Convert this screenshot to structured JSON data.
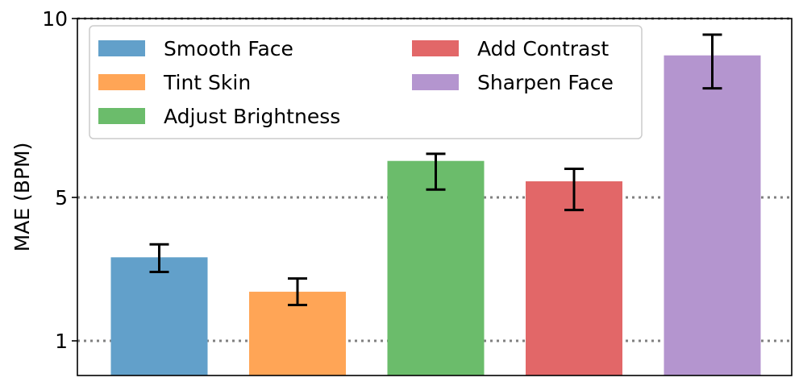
{
  "chart_data": {
    "type": "bar",
    "title": "",
    "xlabel": "",
    "ylabel": "MAE (BPM)",
    "categories": [
      "Smooth Face",
      "Tint Skin",
      "Adjust Brightness",
      "Add Contrast",
      "Sharpen Face"
    ],
    "values": [
      3.33,
      2.37,
      6.02,
      5.45,
      8.97
    ],
    "error_low": [
      2.92,
      2.0,
      5.22,
      4.65,
      8.05
    ],
    "error_high": [
      3.69,
      2.74,
      6.22,
      5.8,
      9.55
    ],
    "colors": [
      "#62a0ca",
      "#ffa556",
      "#6bbc6b",
      "#e26768",
      "#b495cf"
    ],
    "ylim": [
      0,
      10
    ],
    "yticks": [
      1,
      5,
      10
    ],
    "ytick_labels": [
      "1",
      "5",
      "10"
    ],
    "reference_lines": [
      1,
      5,
      10
    ],
    "reference_line_style": "dotted",
    "grid": false,
    "legend": {
      "placement": "top-left",
      "columns": 2,
      "entries": [
        "Smooth Face",
        "Tint Skin",
        "Adjust Brightness",
        "Add Contrast",
        "Sharpen Face"
      ]
    }
  }
}
